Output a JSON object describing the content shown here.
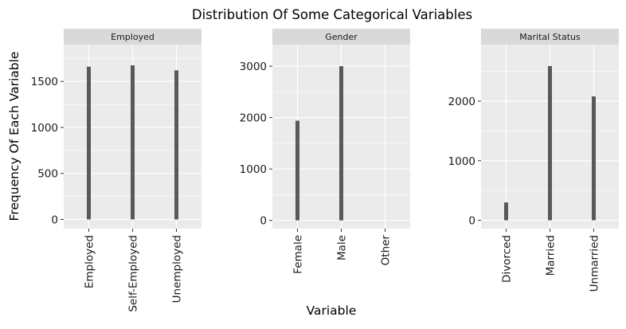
{
  "chart_data": {
    "type": "bar",
    "title": "Distribution Of Some Categorical Variables",
    "xlabel": "Variable",
    "ylabel": "Frequency Of Each Variable",
    "grid": true,
    "colors": {
      "bar": "#595959",
      "panel": "#ebebeb",
      "strip": "#d9d9d9",
      "grid": "#ffffff"
    },
    "facets": [
      {
        "strip": "Employed",
        "categories": [
          "Employed",
          "Self-Employed",
          "Unemployed"
        ],
        "values": [
          1660,
          1675,
          1620
        ],
        "ylim": [
          -100,
          1900
        ],
        "yticks": [
          0,
          500,
          1000,
          1500
        ],
        "ytick_labels": [
          "0",
          "500",
          "1000",
          "1500"
        ]
      },
      {
        "strip": "Gender",
        "categories": [
          "Female",
          "Male",
          "Other"
        ],
        "values": [
          1940,
          3000,
          0
        ],
        "ylim": [
          -160,
          3420
        ],
        "yticks": [
          0,
          1000,
          2000,
          3000
        ],
        "ytick_labels": [
          "0",
          "1000",
          "2000",
          "3000"
        ]
      },
      {
        "strip": "Marital Status",
        "categories": [
          "Divorced",
          "Married",
          "Unmarried"
        ],
        "values": [
          300,
          2590,
          2080
        ],
        "ylim": [
          -140,
          2950
        ],
        "yticks": [
          0,
          1000,
          2000
        ],
        "ytick_labels": [
          "0",
          "1000",
          "2000"
        ]
      }
    ]
  }
}
